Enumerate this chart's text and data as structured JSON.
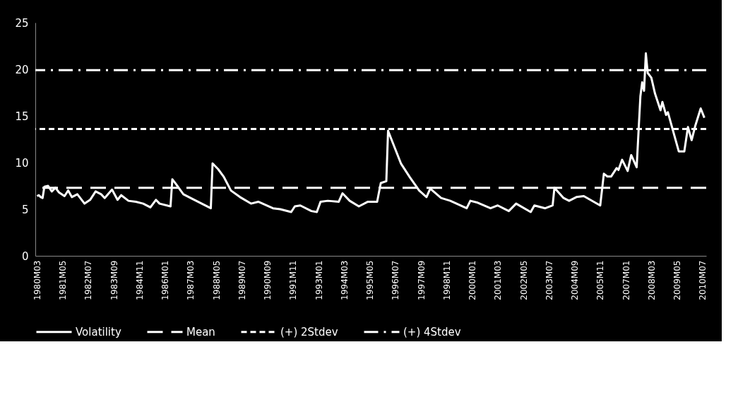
{
  "chart_data": {
    "type": "line",
    "x": [
      "1980-03",
      "1980-04",
      "1980-05",
      "1980-06",
      "1980-07",
      "1980-09",
      "1980-11",
      "1981-01",
      "1981-03",
      "1981-06",
      "1981-08",
      "1981-10",
      "1982-01",
      "1982-05",
      "1982-08",
      "1982-11",
      "1983-02",
      "1983-04",
      "1983-08",
      "1983-11",
      "1984-01",
      "1984-05",
      "1984-09",
      "1985-01",
      "1985-05",
      "1985-08",
      "1985-10",
      "1986-04",
      "1986-05",
      "1986-07",
      "1986-11",
      "1987-03",
      "1987-07",
      "1988-02",
      "1988-03",
      "1988-06",
      "1988-09",
      "1989-01",
      "1989-06",
      "1989-12",
      "1990-04",
      "1990-12",
      "1991-04",
      "1991-10",
      "1991-12",
      "1992-03",
      "1992-09",
      "1992-12",
      "1993-02",
      "1993-06",
      "1993-12",
      "1994-02",
      "1994-06",
      "1994-11",
      "1995-04",
      "1995-09",
      "1995-11",
      "1996-02",
      "1996-03",
      "1996-05",
      "1996-10",
      "1997-03",
      "1997-08",
      "1997-12",
      "1998-02",
      "1998-08",
      "1999-01",
      "1999-10",
      "1999-12",
      "2000-04",
      "2000-11",
      "2001-03",
      "2001-09",
      "2002-01",
      "2002-09",
      "2002-11",
      "2003-05",
      "2003-09",
      "2003-10",
      "2004-03",
      "2004-06",
      "2004-10",
      "2005-02",
      "2005-11",
      "2006-01",
      "2006-03",
      "2006-05",
      "2006-08",
      "2006-09",
      "2006-11",
      "2007-02",
      "2007-04",
      "2007-07",
      "2007-09",
      "2007-10",
      "2007-11",
      "2007-12",
      "2008-01",
      "2008-03",
      "2008-05",
      "2008-08",
      "2008-09",
      "2008-11",
      "2008-12",
      "2009-06",
      "2009-09",
      "2009-11",
      "2010-01",
      "2010-03",
      "2010-06",
      "2010-08"
    ],
    "series": [
      {
        "name": "Volatility",
        "color": "#ffffff",
        "values": [
          6.4,
          6.5,
          6.3,
          6.2,
          7.4,
          7.5,
          6.9,
          7.3,
          6.8,
          6.4,
          7.0,
          6.3,
          6.6,
          5.6,
          6.0,
          6.9,
          6.6,
          6.2,
          7.1,
          6.0,
          6.5,
          5.9,
          5.8,
          5.6,
          5.2,
          6.0,
          5.6,
          5.3,
          8.2,
          7.7,
          6.6,
          6.2,
          5.8,
          5.1,
          9.9,
          9.3,
          8.5,
          7.0,
          6.3,
          5.6,
          5.8,
          5.1,
          5.0,
          4.7,
          5.3,
          5.4,
          4.8,
          4.7,
          5.8,
          5.9,
          5.8,
          6.7,
          5.9,
          5.3,
          5.8,
          5.8,
          7.8,
          8.0,
          13.4,
          12.4,
          9.9,
          8.4,
          7.0,
          6.3,
          7.2,
          6.2,
          5.9,
          5.1,
          5.9,
          5.7,
          5.1,
          5.4,
          4.8,
          5.6,
          4.7,
          5.4,
          5.1,
          5.4,
          7.3,
          6.2,
          5.9,
          6.3,
          6.4,
          5.4,
          8.8,
          8.5,
          8.5,
          9.4,
          9.2,
          10.3,
          9.1,
          10.8,
          9.5,
          17.1,
          18.6,
          17.7,
          21.7,
          19.6,
          19.1,
          17.4,
          15.6,
          16.5,
          15.1,
          15.4,
          11.2,
          11.2,
          13.8,
          12.4,
          13.9,
          15.8,
          14.8
        ]
      }
    ],
    "xlim": [
      "1980-02",
      "2010-09"
    ],
    "xticks": [
      {
        "value": "1980-03",
        "label": "1980M03"
      },
      {
        "value": "1981-05",
        "label": "1981M05"
      },
      {
        "value": "1982-07",
        "label": "1982M07"
      },
      {
        "value": "1983-09",
        "label": "1983M09"
      },
      {
        "value": "1984-11",
        "label": "1984M11"
      },
      {
        "value": "1986-01",
        "label": "1986M01"
      },
      {
        "value": "1987-03",
        "label": "1987M03"
      },
      {
        "value": "1988-05",
        "label": "1988M05"
      },
      {
        "value": "1989-07",
        "label": "1989M07"
      },
      {
        "value": "1990-09",
        "label": "1990M09"
      },
      {
        "value": "1991-11",
        "label": "1991M11"
      },
      {
        "value": "1993-01",
        "label": "1993M01"
      },
      {
        "value": "1994-03",
        "label": "1994M03"
      },
      {
        "value": "1995-05",
        "label": "1995M05"
      },
      {
        "value": "1996-07",
        "label": "1996M07"
      },
      {
        "value": "1997-09",
        "label": "1997M09"
      },
      {
        "value": "1998-11",
        "label": "1998M11"
      },
      {
        "value": "2000-01",
        "label": "2000M01"
      },
      {
        "value": "2001-03",
        "label": "2001M03"
      },
      {
        "value": "2002-05",
        "label": "2002M05"
      },
      {
        "value": "2003-07",
        "label": "2003M07"
      },
      {
        "value": "2004-09",
        "label": "2004M09"
      },
      {
        "value": "2005-11",
        "label": "2005M11"
      },
      {
        "value": "2007-01",
        "label": "2007M01"
      },
      {
        "value": "2008-03",
        "label": "2008M03"
      },
      {
        "value": "2009-05",
        "label": "2009M05"
      },
      {
        "value": "2010-07",
        "label": "2010M07"
      }
    ],
    "ylim": [
      0,
      25
    ],
    "yticks": [
      0,
      5,
      10,
      15,
      20,
      25
    ],
    "ref_lines": [
      {
        "axis": "y",
        "value": 7.3,
        "label": "Mean",
        "color": "#ffffff",
        "line_style": "dashed"
      },
      {
        "axis": "y",
        "value": 13.6,
        "label": "(+) 2Stdev",
        "color": "#ffffff",
        "line_style": "dotted"
      },
      {
        "axis": "y",
        "value": 19.9,
        "label": "(+) 4Stdev",
        "color": "#ffffff",
        "line_style": "dashdot"
      }
    ],
    "legend": "bottom",
    "grid": false,
    "marker": "none",
    "line_style": "solid"
  }
}
